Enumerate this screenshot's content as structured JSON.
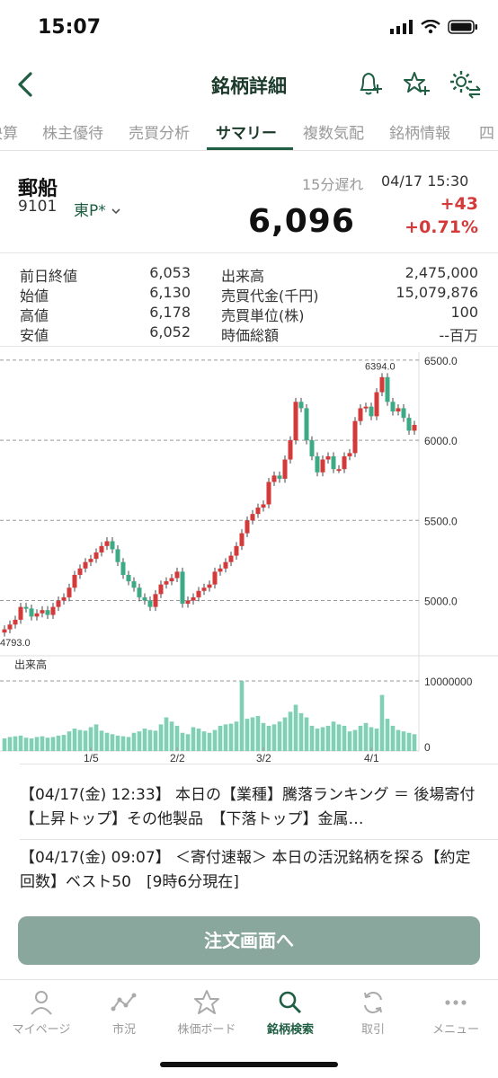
{
  "status": {
    "time": "15:07"
  },
  "nav": {
    "title": "銘柄詳細"
  },
  "tabs": [
    "決算",
    "株主優待",
    "売買分析",
    "サマリー",
    "複数気配",
    "銘柄情報",
    "四"
  ],
  "stock": {
    "name": "郵船",
    "code": "9101",
    "market": "東P*",
    "delay": "15分遅れ",
    "datetime": "04/17 15:30",
    "price": "6,096",
    "change": "+43",
    "change_pct": "+0.71%"
  },
  "stats": [
    {
      "l1": "前日終値",
      "v1": "6,053",
      "l2": "出来高",
      "v2": "2,475,000"
    },
    {
      "l1": "始値",
      "v1": "6,130",
      "l2": "売買代金(千円)",
      "v2": "15,079,876"
    },
    {
      "l1": "高値",
      "v1": "6,178",
      "l2": "売買単位(株)",
      "v2": "100"
    },
    {
      "l1": "安値",
      "v1": "6,052",
      "l2": "時価総額",
      "v2": "--百万"
    }
  ],
  "chart_data": {
    "type": "candlestick",
    "y_ticks": [
      "6500.0",
      "6000.0",
      "5500.0",
      "5000.0"
    ],
    "x_ticks": [
      "1/5",
      "2/2",
      "3/2",
      "4/1"
    ],
    "max_label": "6394.0",
    "min_label": "4793.0",
    "volume_label": "出来高",
    "volume_ticks": [
      "10000000",
      "0"
    ],
    "ylim": [
      4700,
      6550
    ],
    "closes": [
      4820,
      4850,
      4880,
      4960,
      4950,
      4900,
      4920,
      4940,
      4910,
      4960,
      5000,
      5020,
      5080,
      5160,
      5200,
      5240,
      5260,
      5300,
      5340,
      5370,
      5320,
      5240,
      5160,
      5120,
      5080,
      5020,
      5000,
      4960,
      5040,
      5100,
      5120,
      5140,
      5180,
      4980,
      5000,
      5020,
      5060,
      5080,
      5100,
      5180,
      5200,
      5240,
      5280,
      5340,
      5420,
      5500,
      5540,
      5580,
      5600,
      5740,
      5780,
      5760,
      5880,
      6000,
      6240,
      6200,
      6000,
      5900,
      5800,
      5880,
      5900,
      5820,
      5820,
      5900,
      5920,
      6120,
      6200,
      6210,
      6150,
      6300,
      6394,
      6240,
      6180,
      6200,
      6140,
      6060,
      6096
    ],
    "volumes": [
      1.8,
      2.0,
      2.1,
      2.2,
      1.9,
      1.8,
      2.0,
      2.1,
      1.9,
      2.0,
      2.2,
      2.3,
      2.8,
      3.2,
      3.0,
      2.9,
      3.4,
      3.8,
      2.9,
      2.6,
      2.4,
      2.2,
      2.1,
      2.0,
      2.6,
      2.8,
      3.2,
      3.0,
      2.9,
      3.8,
      4.8,
      4.2,
      3.6,
      2.6,
      2.4,
      3.4,
      3.2,
      2.8,
      2.6,
      3.0,
      3.6,
      3.8,
      3.9,
      4.2,
      10.0,
      4.6,
      4.8,
      5.0,
      4.0,
      3.6,
      3.8,
      4.2,
      4.8,
      5.6,
      6.6,
      5.4,
      4.8,
      3.6,
      3.2,
      3.4,
      3.6,
      4.2,
      3.8,
      3.6,
      2.8,
      3.0,
      3.6,
      4.0,
      3.4,
      3.2,
      8.0,
      4.6,
      3.6,
      3.0,
      2.8,
      2.6,
      2.4
    ]
  },
  "news": [
    "【04/17(金) 12:33】 本日の【業種】騰落ランキング ＝ 後場寄付　【上昇トップ】その他製品　【下落トップ】金属…",
    "【04/17(金) 09:07】 ＜寄付速報＞ 本日の活況銘柄を探る【約定回数】ベスト50　[9時6分現在]"
  ],
  "order_button": "注文画面へ",
  "tabbar": [
    "マイページ",
    "市況",
    "株価ボード",
    "銘柄検索",
    "取引",
    "メニュー"
  ],
  "colors": {
    "accent": "#1f5e43",
    "up": "#d43a3a",
    "down": "#3daa86",
    "volume": "#7fd0b5"
  }
}
